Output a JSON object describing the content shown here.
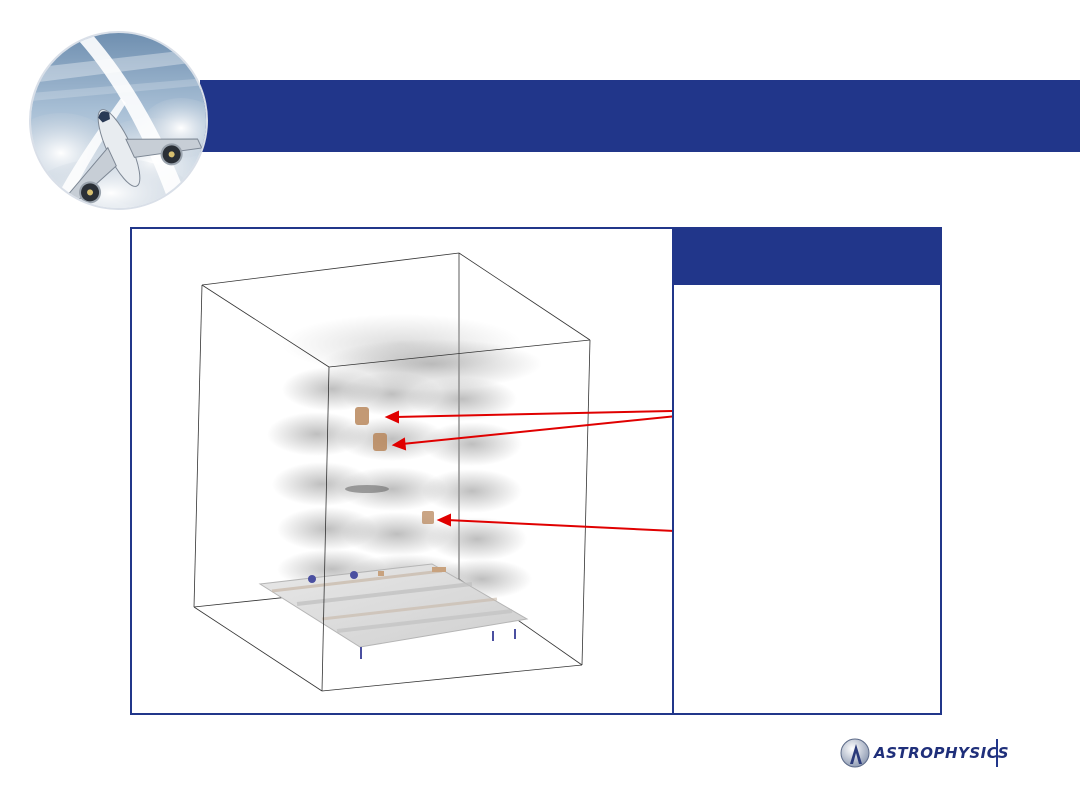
{
  "slide": {
    "header": {
      "color": "#21368a"
    },
    "badge": {
      "icon": "airplane-in-clouds-icon"
    },
    "panel": {
      "accent_color": "#21368a"
    },
    "visualization": {
      "description_icon": "3d-volume-render-icon",
      "arrow_color": "#e00000",
      "highlight_color": "#b8875c"
    },
    "logo": {
      "text": "ASTROPHYSICS",
      "icon": "astrophysics-logo-icon"
    }
  }
}
